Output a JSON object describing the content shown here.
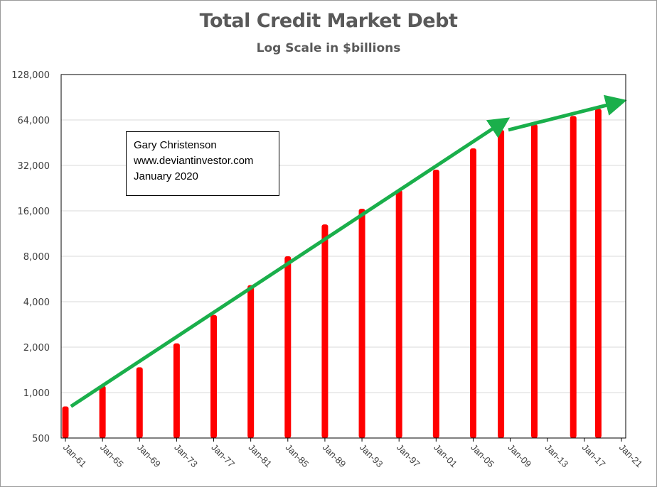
{
  "chart_data": {
    "type": "bar",
    "title": "Total Credit Market Debt",
    "subtitle": "Log Scale in $billions",
    "y_scale": "log2",
    "ylim": [
      500,
      128000
    ],
    "y_ticks": [
      500,
      1000,
      2000,
      4000,
      8000,
      16000,
      32000,
      64000,
      128000
    ],
    "y_tick_labels": [
      "500",
      "1,000",
      "2,000",
      "4,000",
      "8,000",
      "16,000",
      "32,000",
      "64,000",
      "128,000"
    ],
    "x_tick_labels": [
      "Jan-61",
      "Jan-65",
      "Jan-69",
      "Jan-73",
      "Jan-77",
      "Jan-81",
      "Jan-85",
      "Jan-89",
      "Jan-93",
      "Jan-97",
      "Jan-01",
      "Jan-05",
      "Jan-09",
      "Jan-13",
      "Jan-17",
      "Jan-21"
    ],
    "x_range": [
      1961,
      2021
    ],
    "grid": true,
    "bar_color": "#ff0000",
    "trend_color": "#1aaf4b",
    "bars": [
      {
        "x": 1961.0,
        "value": 810
      },
      {
        "x": 1965.0,
        "value": 1110
      },
      {
        "x": 1969.0,
        "value": 1470
      },
      {
        "x": 1973.0,
        "value": 2120
      },
      {
        "x": 1977.0,
        "value": 3270
      },
      {
        "x": 1981.0,
        "value": 5150
      },
      {
        "x": 1985.0,
        "value": 8000
      },
      {
        "x": 1989.0,
        "value": 13000
      },
      {
        "x": 1993.0,
        "value": 16500
      },
      {
        "x": 1997.0,
        "value": 22000
      },
      {
        "x": 2001.0,
        "value": 30000
      },
      {
        "x": 2005.0,
        "value": 41500
      },
      {
        "x": 2008.0,
        "value": 55000
      },
      {
        "x": 2011.6,
        "value": 60000
      },
      {
        "x": 2015.8,
        "value": 68000
      },
      {
        "x": 2018.5,
        "value": 76000
      }
    ],
    "trend_arrows": [
      {
        "from": {
          "x": 1961.6,
          "value": 810
        },
        "to": {
          "x": 2008.2,
          "value": 62000
        }
      },
      {
        "from": {
          "x": 2008.8,
          "value": 55000
        },
        "to": {
          "x": 2020.7,
          "value": 84000
        }
      }
    ],
    "annotation": {
      "lines": [
        "Gary Christenson",
        "www.deviantinvestor.com",
        "January 2020"
      ]
    }
  }
}
